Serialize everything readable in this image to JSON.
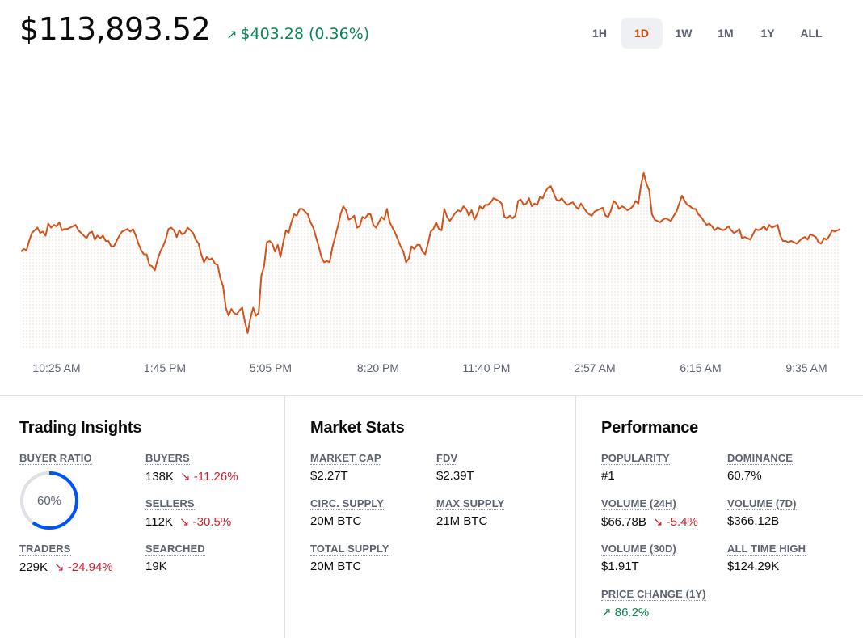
{
  "price": {
    "current": "$113,893.52",
    "change_arrow": "↗",
    "change": "$403.28 (0.36%)"
  },
  "ranges": [
    {
      "label": "1H",
      "active": false
    },
    {
      "label": "1D",
      "active": true
    },
    {
      "label": "1W",
      "active": false
    },
    {
      "label": "1M",
      "active": false
    },
    {
      "label": "1Y",
      "active": false
    },
    {
      "label": "ALL",
      "active": false
    }
  ],
  "colors": {
    "line": "#d4521a",
    "positive": "#098551",
    "negative": "#cf202f",
    "ring": "#0052ff"
  },
  "chart_data": {
    "type": "line",
    "title": "",
    "xlabel": "",
    "ylabel": "",
    "tick_labels": [
      "10:25 AM",
      "1:45 PM",
      "5:05 PM",
      "8:20 PM",
      "11:40 PM",
      "2:57 AM",
      "6:15 AM",
      "9:35 AM"
    ],
    "ylim": [
      110000,
      120000
    ],
    "values": [
      113600,
      113700,
      113650,
      114000,
      114300,
      114400,
      114500,
      114300,
      114350,
      114200,
      114650,
      114500,
      114600,
      114550,
      114700,
      114400,
      114450,
      114450,
      114500,
      114550,
      114600,
      114400,
      114300,
      114200,
      114100,
      114300,
      114350,
      114050,
      114200,
      114100,
      114200,
      114000,
      114000,
      113800,
      113800,
      114000,
      114200,
      114350,
      114400,
      114450,
      114350,
      114450,
      114200,
      113900,
      113650,
      113500,
      113500,
      113100,
      113050,
      112900,
      113300,
      113600,
      113800,
      114050,
      114450,
      114500,
      114400,
      114150,
      114400,
      114250,
      114300,
      114500,
      114400,
      114300,
      114050,
      113900,
      113500,
      113200,
      113400,
      113300,
      113350,
      113150,
      113100,
      112600,
      112300,
      111500,
      111200,
      111450,
      111300,
      111250,
      111400,
      111500,
      110950,
      110550,
      111100,
      111500,
      111200,
      111300,
      112700,
      113050,
      113950,
      114000,
      113900,
      113600,
      113850,
      113400,
      113950,
      114400,
      114300,
      114700,
      115000,
      114950,
      115200,
      115200,
      115100,
      115000,
      114700,
      114500,
      114150,
      113800,
      113400,
      113200,
      113250,
      113200,
      113750,
      114150,
      114550,
      115000,
      115300,
      115150,
      114800,
      114850,
      114950,
      114500,
      114550,
      114900,
      114850,
      115000,
      115000,
      114600,
      114500,
      114700,
      114900,
      114800,
      115200,
      114700,
      114500,
      114300,
      114050,
      113800,
      113600,
      113200,
      113350,
      113800,
      113700,
      113850,
      113850,
      113600,
      113500,
      113900,
      114350,
      114450,
      114700,
      114450,
      114400,
      115200,
      114900,
      114750,
      114900,
      115050,
      115150,
      115100,
      115300,
      115200,
      114950,
      115150,
      114800,
      115000,
      115300,
      115200,
      115350,
      115350,
      115450,
      115600,
      115550,
      115500,
      115400,
      114900,
      114850,
      114950,
      114850,
      114950,
      115500,
      115550,
      115350,
      115400,
      115600,
      115300,
      115400,
      115350,
      115650,
      115600,
      115850,
      116000,
      116050,
      115800,
      115550,
      115500,
      115600,
      115450,
      115350,
      115400,
      115450,
      115300,
      115200,
      115400,
      115250,
      115100,
      115000,
      114950,
      115100,
      115150,
      115200,
      115250,
      114950,
      114900,
      115150,
      115500,
      115400,
      115200,
      115300,
      115250,
      115150,
      115200,
      115300,
      115500,
      115400,
      116100,
      116550,
      116150,
      115900,
      115000,
      114800,
      114750,
      114700,
      114800,
      114850,
      114800,
      114750,
      114950,
      115100,
      115400,
      115700,
      115500,
      115350,
      115300,
      115200,
      115200,
      115000,
      114900,
      114750,
      114600,
      114650,
      114550,
      114400,
      114500,
      114450,
      114400,
      114450,
      114550,
      114400,
      114300,
      114350,
      114450,
      114100,
      114150,
      114100,
      114050,
      114250,
      114450,
      114400,
      114450,
      114550,
      114400,
      114600,
      114500,
      114550,
      114600,
      114200,
      114000,
      114000,
      113950,
      114000,
      113950,
      113900,
      114000,
      114100,
      114150,
      114050,
      114250,
      114200,
      114150,
      113950,
      113900,
      114100,
      114050,
      114200,
      114400,
      114350,
      114400,
      114450
    ]
  },
  "trading_insights": {
    "title": "Trading Insights",
    "buyer_ratio": {
      "label": "BUYER RATIO",
      "value": "60%",
      "fraction": 0.6
    },
    "buyers": {
      "label": "BUYERS",
      "value": "138K",
      "change": "↘ -11.26%"
    },
    "sellers": {
      "label": "SELLERS",
      "value": "112K",
      "change": "↘ -30.5%"
    },
    "traders": {
      "label": "TRADERS",
      "value": "229K",
      "change": "↘ -24.94%"
    },
    "searched": {
      "label": "SEARCHED",
      "value": "19K"
    }
  },
  "market_stats": {
    "title": "Market Stats",
    "market_cap": {
      "label": "MARKET CAP",
      "value": "$2.27T"
    },
    "fdv": {
      "label": "FDV",
      "value": "$2.39T"
    },
    "circ_supply": {
      "label": "CIRC. SUPPLY",
      "value": "20M BTC"
    },
    "max_supply": {
      "label": "MAX SUPPLY",
      "value": "21M BTC"
    },
    "total_supply": {
      "label": "TOTAL SUPPLY",
      "value": "20M BTC"
    }
  },
  "performance": {
    "title": "Performance",
    "popularity": {
      "label": "POPULARITY",
      "value": "#1"
    },
    "dominance": {
      "label": "DOMINANCE",
      "value": "60.7%"
    },
    "volume_24h": {
      "label": "VOLUME (24H)",
      "value": "$66.78B",
      "change": "↘ -5.4%"
    },
    "volume_7d": {
      "label": "VOLUME (7D)",
      "value": "$366.12B"
    },
    "volume_30d": {
      "label": "VOLUME (30D)",
      "value": "$1.91T"
    },
    "all_time_high": {
      "label": "ALL TIME HIGH",
      "value": "$124.29K"
    },
    "price_change_1y": {
      "label": "PRICE CHANGE (1Y)",
      "value": "↗ 86.2%"
    }
  }
}
